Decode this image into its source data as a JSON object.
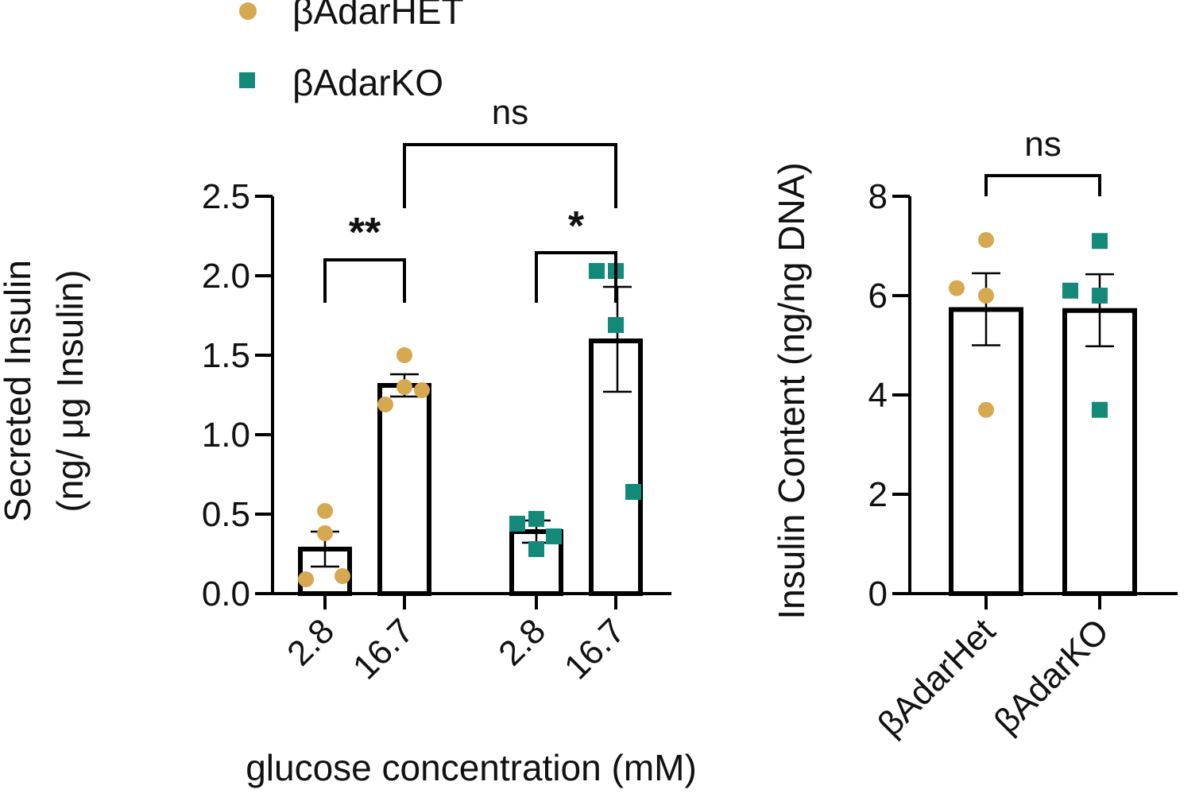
{
  "legend": [
    {
      "name": "βAdarHET",
      "marker": "circle",
      "color": "#D6A84F"
    },
    {
      "name": "βAdarKO",
      "marker": "square",
      "color": "#13897A"
    }
  ],
  "chart_data": [
    {
      "type": "bar",
      "ylabel_line1": "Secreted Insulin",
      "ylabel_line2": "(ng/ μg Insulin)",
      "xlabel": "glucose concentration (mM)",
      "ylim": [
        0,
        2.5
      ],
      "yticks": [
        "0.0",
        "0.5",
        "1.0",
        "1.5",
        "2.0",
        "2.5"
      ],
      "ytick_values": [
        0,
        0.5,
        1.0,
        1.5,
        2.0,
        2.5
      ],
      "bars": [
        {
          "label": "2.8",
          "group": "βAdarHET",
          "mean": 0.28,
          "sem_low": 0.17,
          "sem_high": 0.39,
          "points": [
            0.09,
            0.52,
            0.38,
            0.11
          ]
        },
        {
          "label": "16.7",
          "group": "βAdarHET",
          "mean": 1.31,
          "sem_low": 1.24,
          "sem_high": 1.38,
          "points": [
            1.19,
            1.5,
            1.3,
            1.28
          ]
        },
        {
          "label": "2.8",
          "group": "βAdarKO",
          "mean": 0.39,
          "sem_low": 0.32,
          "sem_high": 0.46,
          "points": [
            0.44,
            0.47,
            0.28,
            0.36
          ]
        },
        {
          "label": "16.7",
          "group": "βAdarKO",
          "mean": 1.59,
          "sem_low": 1.27,
          "sem_high": 1.93,
          "points": [
            2.03,
            2.03,
            1.69,
            0.64
          ]
        }
      ],
      "comparisons": [
        {
          "from": 0,
          "to": 1,
          "label": "**"
        },
        {
          "from": 2,
          "to": 3,
          "label": "*"
        },
        {
          "from": 1,
          "to": 3,
          "label": "ns"
        }
      ]
    },
    {
      "type": "bar",
      "ylabel": "Insulin Content (ng/ng DNA)",
      "ylim": [
        0,
        8
      ],
      "yticks": [
        "0",
        "2",
        "4",
        "6",
        "8"
      ],
      "ytick_values": [
        0,
        2,
        4,
        6,
        8
      ],
      "bars": [
        {
          "label": "βAdarHet",
          "group": "βAdarHET",
          "mean": 5.72,
          "sem_low": 5.0,
          "sem_high": 6.45,
          "points": [
            6.15,
            7.12,
            6.0,
            3.7
          ]
        },
        {
          "label": "βAdarKO",
          "group": "βAdarKO",
          "mean": 5.7,
          "sem_low": 4.98,
          "sem_high": 6.43,
          "points": [
            6.1,
            7.1,
            6.0,
            3.7
          ]
        }
      ],
      "comparisons": [
        {
          "from": 0,
          "to": 1,
          "label": "ns"
        }
      ]
    }
  ]
}
